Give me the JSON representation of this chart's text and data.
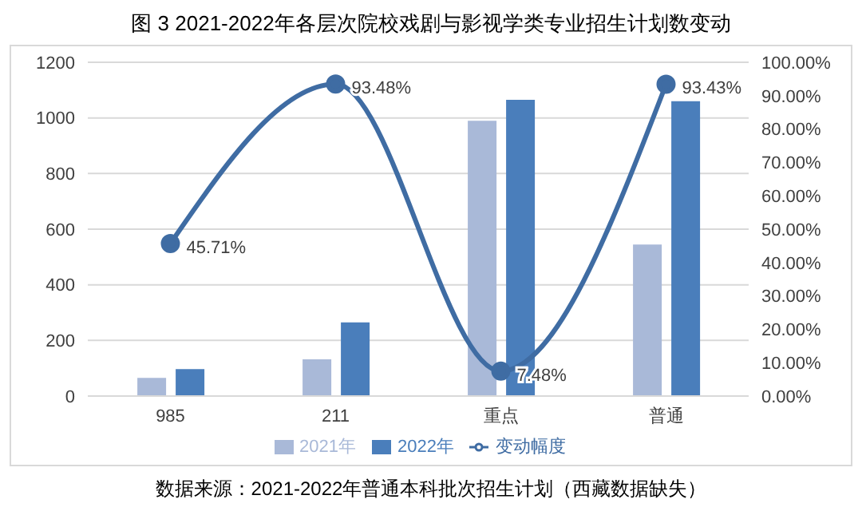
{
  "chart_data": {
    "type": "bar",
    "title": "图 3 2021-2022年各层次院校戏剧与影视学类专业招生计划数变动",
    "categories": [
      "985",
      "211",
      "重点",
      "普通"
    ],
    "series": [
      {
        "name": "2021年",
        "color": "#a9b9d8",
        "values": [
          65,
          132,
          990,
          545
        ]
      },
      {
        "name": "2022年",
        "color": "#4a7ebb",
        "values": [
          97,
          265,
          1065,
          1060
        ]
      },
      {
        "name": "变动幅度",
        "type": "line",
        "axis": "y2",
        "color": "#3f6ca3",
        "values": [
          45.71,
          93.48,
          7.48,
          93.43
        ],
        "value_labels": [
          "45.71%",
          "93.48%",
          "7.48%",
          "93.43%"
        ]
      }
    ],
    "ylim": [
      0,
      1200
    ],
    "yticks": [
      0,
      200,
      400,
      600,
      800,
      1000,
      1200
    ],
    "y2lim": [
      0,
      100
    ],
    "y2ticks": [
      {
        "value": 0,
        "label": "0.00%"
      },
      {
        "value": 10,
        "label": "10.00%"
      },
      {
        "value": 20,
        "label": "20.00%"
      },
      {
        "value": 30,
        "label": "30.00%"
      },
      {
        "value": 40,
        "label": "40.00%"
      },
      {
        "value": 50,
        "label": "50.00%"
      },
      {
        "value": 60,
        "label": "60.00%"
      },
      {
        "value": 70,
        "label": "70.00%"
      },
      {
        "value": 80,
        "label": "80.00%"
      },
      {
        "value": 90,
        "label": "90.00%"
      },
      {
        "value": 100,
        "label": "100.00%"
      }
    ],
    "grid": "y",
    "legend": "bottom",
    "marker": "circle",
    "line_style": "solid",
    "annotations": [
      "数据来源：2021-2022年普通本科批次招生计划（西藏数据缺失）"
    ]
  }
}
